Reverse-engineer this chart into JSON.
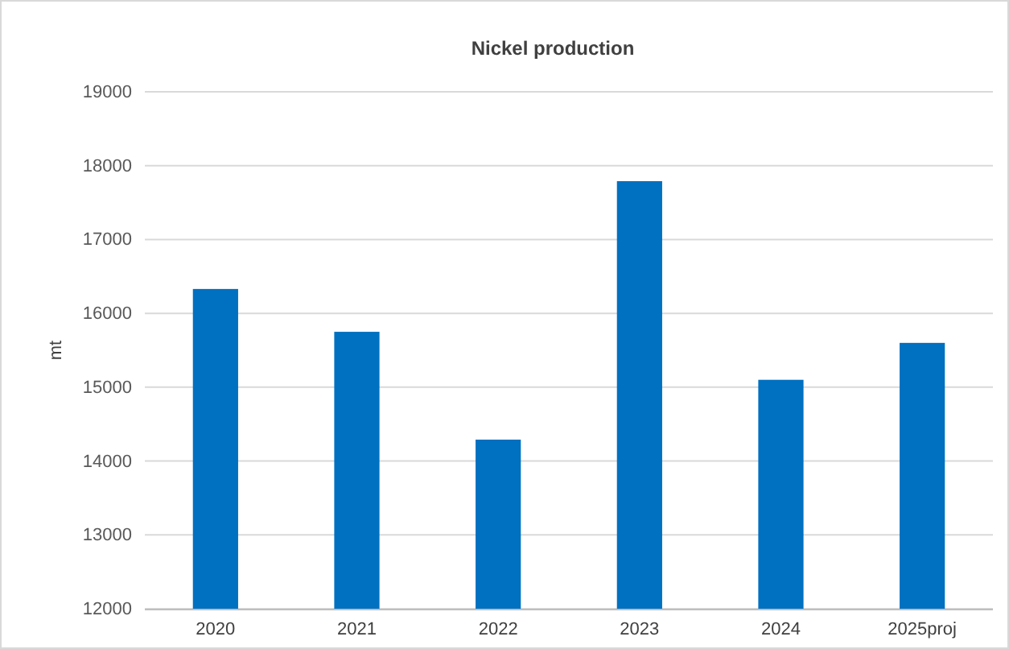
{
  "chart_data": {
    "type": "bar",
    "title": "Nickel production",
    "ylabel": "mt",
    "categories": [
      "2020",
      "2021",
      "2022",
      "2023",
      "2024",
      "2025proj"
    ],
    "values": [
      16330,
      15750,
      14290,
      17790,
      15100,
      15600
    ],
    "color": "#0070c0",
    "ylim": [
      12000,
      19000
    ],
    "yticks": [
      12000,
      13000,
      14000,
      15000,
      16000,
      17000,
      18000,
      19000
    ],
    "grid": "y"
  }
}
